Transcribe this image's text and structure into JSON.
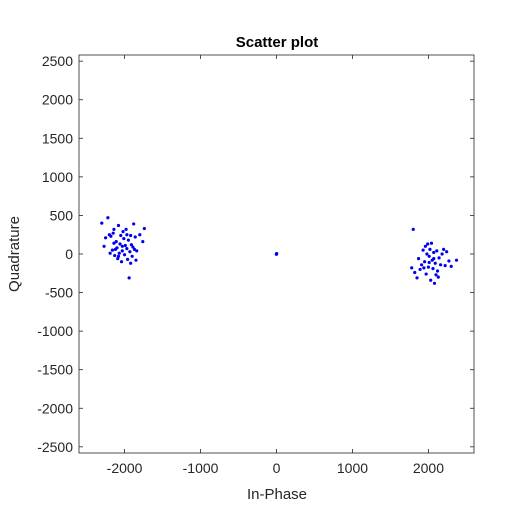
{
  "chart_data": {
    "type": "scatter",
    "title": "Scatter plot",
    "xlabel": "In-Phase",
    "ylabel": "Quadrature",
    "xlim": [
      -2600,
      2600
    ],
    "ylim": [
      -2580,
      2580
    ],
    "xticks": [
      -2000,
      -1000,
      0,
      1000,
      2000
    ],
    "yticks": [
      -2500,
      -2000,
      -1500,
      -1000,
      -500,
      0,
      500,
      1000,
      1500,
      2000,
      2500
    ],
    "grid": false,
    "legend": "none",
    "colors": {
      "points": "#0000ee",
      "axes": "#262626"
    },
    "series": [
      {
        "points": [
          [
            -2300,
            400
          ],
          [
            -2270,
            100
          ],
          [
            -2220,
            470
          ],
          [
            -2200,
            250
          ],
          [
            -2180,
            230
          ],
          [
            -2160,
            50
          ],
          [
            -2150,
            270
          ],
          [
            -2140,
            320
          ],
          [
            -2130,
            -20
          ],
          [
            -2120,
            60
          ],
          [
            -2110,
            160
          ],
          [
            -2100,
            80
          ],
          [
            -2090,
            -60
          ],
          [
            -2080,
            370
          ],
          [
            -2070,
            10
          ],
          [
            -2060,
            130
          ],
          [
            -2050,
            240
          ],
          [
            -2040,
            -100
          ],
          [
            -2030,
            40
          ],
          [
            -2020,
            290
          ],
          [
            -2010,
            200
          ],
          [
            -2000,
            -10
          ],
          [
            -1990,
            110
          ],
          [
            -1980,
            320
          ],
          [
            -1970,
            70
          ],
          [
            -1960,
            -70
          ],
          [
            -1950,
            180
          ],
          [
            -1940,
            -310
          ],
          [
            -1930,
            30
          ],
          [
            -1920,
            240
          ],
          [
            -1910,
            120
          ],
          [
            -1900,
            -30
          ],
          [
            -1890,
            90
          ],
          [
            -1880,
            390
          ],
          [
            -1870,
            60
          ],
          [
            -1860,
            220
          ],
          [
            -1850,
            -80
          ],
          [
            -1840,
            40
          ],
          [
            -1800,
            250
          ],
          [
            -1760,
            160
          ],
          [
            -1740,
            330
          ],
          [
            -2190,
            10
          ],
          [
            -2140,
            140
          ],
          [
            -2080,
            -30
          ],
          [
            -2030,
            100
          ],
          [
            -1970,
            250
          ],
          [
            -2250,
            210
          ],
          [
            -1920,
            -120
          ],
          [
            0,
            0
          ],
          [
            2,
            5
          ],
          [
            -2,
            -3
          ],
          [
            1780,
            -180
          ],
          [
            1800,
            320
          ],
          [
            1820,
            -240
          ],
          [
            1850,
            -310
          ],
          [
            1870,
            -60
          ],
          [
            1890,
            -200
          ],
          [
            1910,
            -140
          ],
          [
            1930,
            50
          ],
          [
            1950,
            -100
          ],
          [
            1960,
            100
          ],
          [
            1970,
            -260
          ],
          [
            1980,
            0
          ],
          [
            1990,
            130
          ],
          [
            2000,
            -170
          ],
          [
            2010,
            -30
          ],
          [
            2020,
            60
          ],
          [
            2030,
            -340
          ],
          [
            2040,
            140
          ],
          [
            2050,
            -80
          ],
          [
            2060,
            -190
          ],
          [
            2070,
            20
          ],
          [
            2080,
            -380
          ],
          [
            2090,
            -120
          ],
          [
            2100,
            -270
          ],
          [
            2110,
            40
          ],
          [
            2120,
            -220
          ],
          [
            2140,
            -50
          ],
          [
            2160,
            -140
          ],
          [
            2180,
            0
          ],
          [
            2200,
            60
          ],
          [
            2220,
            -150
          ],
          [
            2240,
            30
          ],
          [
            2270,
            -90
          ],
          [
            2300,
            -160
          ],
          [
            2370,
            -80
          ],
          [
            2010,
            -110
          ],
          [
            2070,
            -60
          ],
          [
            1940,
            -180
          ],
          [
            2130,
            -300
          ]
        ]
      }
    ]
  }
}
